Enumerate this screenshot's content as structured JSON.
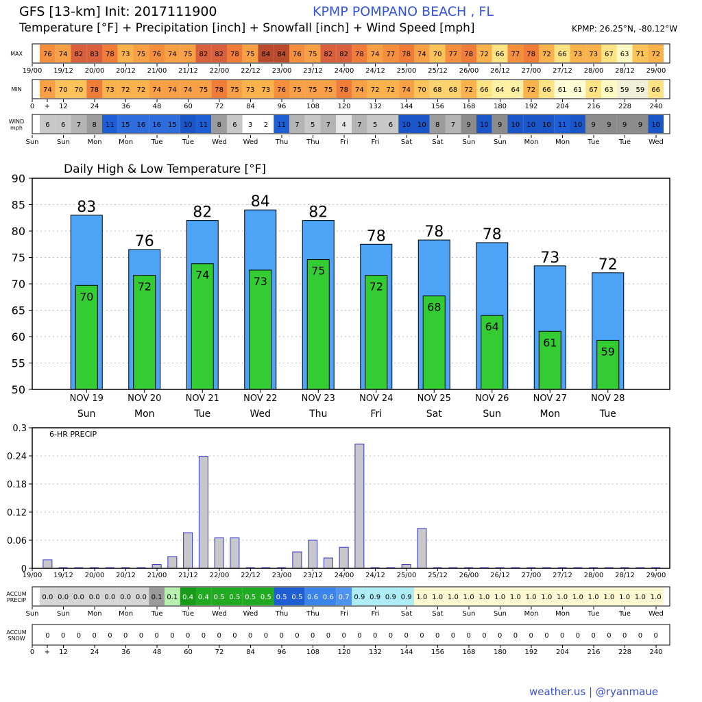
{
  "header": {
    "title_line1": "GFS [13-km] Init: 2017111900",
    "title_line2": "Temperature [°F] + Precipitation [inch] + Snowfall [inch] + Wind Speed [mph]",
    "station": "KPMP POMPANO BEACH  , FL",
    "coords": "KPMP: 26.25°N, -80.12°W"
  },
  "footer": {
    "credit": "weather.us | @ryanmaue"
  },
  "strips": {
    "max_label": "MAX",
    "min_label": "MIN",
    "wind_label": [
      "WIND",
      "mph"
    ],
    "accum_precip_label": [
      "ACCUM",
      "PRECIP"
    ],
    "accum_snow_label": [
      "ACCUM",
      "SNOW"
    ],
    "max": [
      76,
      74,
      82,
      83,
      78,
      73,
      75,
      76,
      74,
      75,
      82,
      82,
      78,
      75,
      84,
      84,
      76,
      75,
      82,
      82,
      78,
      74,
      77,
      78,
      74,
      70,
      77,
      78,
      72,
      66,
      77,
      78,
      72,
      66,
      73,
      73,
      67,
      63,
      71,
      72
    ],
    "min": [
      74,
      70,
      70,
      78,
      73,
      72,
      72,
      74,
      74,
      74,
      75,
      78,
      75,
      73,
      73,
      76,
      75,
      75,
      75,
      78,
      74,
      72,
      72,
      74,
      70,
      68,
      68,
      72,
      66,
      64,
      64,
      72,
      66,
      61,
      61,
      67,
      63,
      59,
      59,
      66
    ],
    "wind": [
      6,
      6,
      7,
      8,
      11,
      15,
      16,
      16,
      15,
      10,
      11,
      8,
      6,
      3,
      2,
      11,
      7,
      5,
      7,
      4,
      7,
      5,
      6,
      10,
      10,
      8,
      7,
      9,
      10,
      9,
      10,
      10,
      10,
      11,
      10,
      9,
      9,
      9,
      9,
      10
    ],
    "accum_precip": [
      "0.0",
      "0.0",
      "0.0",
      "0.0",
      "0.0",
      "0.0",
      "0.0",
      "0.1",
      "0.1",
      "0.4",
      "0.4",
      "0.5",
      "0.5",
      "0.5",
      "0.5",
      "0.5",
      "0.5",
      "0.6",
      "0.6",
      "0.7",
      "0.9",
      "0.9",
      "0.9",
      "0.9",
      "1.0",
      "1.0",
      "1.0",
      "1.0",
      "1.0",
      "1.0",
      "1.0",
      "1.0",
      "1.0",
      "1.0",
      "1.0",
      "1.0",
      "1.0",
      "1.0",
      "1.0",
      "1.0"
    ],
    "accum_snow": [
      0,
      0,
      0,
      0,
      0,
      0,
      0,
      0,
      0,
      0,
      0,
      0,
      0,
      0,
      0,
      0,
      0,
      0,
      0,
      0,
      0,
      0,
      0,
      0,
      0,
      0,
      0,
      0,
      0,
      0,
      0,
      0,
      0,
      0,
      0,
      0,
      0,
      0,
      0,
      0
    ],
    "date_ticks": [
      "19/00",
      "19/12",
      "20/00",
      "20/12",
      "21/00",
      "21/12",
      "22/00",
      "22/12",
      "23/00",
      "23/12",
      "24/00",
      "24/12",
      "25/00",
      "25/12",
      "26/00",
      "26/12",
      "27/00",
      "27/12",
      "28/00",
      "28/12",
      "29/00"
    ],
    "hour_ticks": [
      "0",
      "+",
      "12",
      "24",
      "36",
      "48",
      "60",
      "72",
      "84",
      "96",
      "108",
      "120",
      "132",
      "144",
      "156",
      "168",
      "180",
      "192",
      "204",
      "216",
      "228",
      "240"
    ],
    "day_ticks": [
      "Sun",
      "Sun",
      "Mon",
      "Mon",
      "Tue",
      "Tue",
      "Wed",
      "Wed",
      "Thu",
      "Thu",
      "Fri",
      "Fri",
      "Sat",
      "Sat",
      "Sun",
      "Sun",
      "Mon",
      "Mon",
      "Tue",
      "Tue",
      "Wed"
    ]
  },
  "chart_data": [
    {
      "type": "bar",
      "title": "Daily High & Low Temperature [°F]",
      "categories": [
        "NOV 19",
        "NOV 20",
        "NOV 21",
        "NOV 22",
        "NOV 23",
        "NOV 24",
        "NOV 25",
        "NOV 26",
        "NOV 27",
        "NOV 28"
      ],
      "weekdays": [
        "Sun",
        "Mon",
        "Tue",
        "Wed",
        "Thu",
        "Fri",
        "Sat",
        "Sun",
        "Mon",
        "Tue"
      ],
      "series": [
        {
          "name": "High",
          "color": "#4da3f5",
          "values": [
            83,
            76.5,
            82,
            84,
            82,
            77.5,
            78.3,
            77.8,
            73.4,
            72.1
          ],
          "labels": [
            "83",
            "76",
            "82",
            "84",
            "82",
            "78",
            "78",
            "78",
            "73",
            "72"
          ]
        },
        {
          "name": "Low",
          "color": "#33cc33",
          "values": [
            69.7,
            71.6,
            73.8,
            72.6,
            74.6,
            71.6,
            67.7,
            64.0,
            61.0,
            59.3
          ],
          "labels": [
            "70",
            "72",
            "74",
            "73",
            "75",
            "72",
            "68",
            "64",
            "61",
            "59"
          ]
        }
      ],
      "ylim": [
        50,
        90
      ],
      "yticks": [
        "50",
        "55",
        "60",
        "65",
        "70",
        "75",
        "80",
        "85",
        "90"
      ],
      "grid": true
    },
    {
      "type": "bar",
      "title": "6-HR PRECIP",
      "x": [
        "19/00",
        "19/06",
        "19/12",
        "19/18",
        "20/00",
        "20/06",
        "20/12",
        "20/18",
        "21/00",
        "21/06",
        "21/12",
        "21/18",
        "22/00",
        "22/06",
        "22/12",
        "22/18",
        "23/00",
        "23/06",
        "23/12",
        "23/18",
        "24/00",
        "24/06",
        "24/12",
        "24/18",
        "25/00",
        "25/06",
        "25/12",
        "25/18",
        "26/00",
        "26/06",
        "26/12",
        "26/18",
        "27/00",
        "27/06",
        "27/12",
        "27/18",
        "28/00",
        "28/06",
        "28/12",
        "28/18"
      ],
      "values": [
        0.018,
        0,
        0,
        0,
        0,
        0,
        0,
        0.008,
        0.025,
        0.076,
        0.239,
        0.065,
        0.065,
        0,
        0,
        0,
        0.035,
        0.06,
        0.022,
        0.045,
        0.265,
        0,
        0,
        0.008,
        0.085,
        0,
        0,
        0,
        0,
        0,
        0,
        0,
        0,
        0,
        0,
        0,
        0,
        0,
        0,
        0
      ],
      "color": "#c8c8cc",
      "ylim": [
        0,
        0.3
      ],
      "yticks": [
        "0",
        "0.06",
        "0.12",
        "0.18",
        "0.24",
        "0.3"
      ],
      "grid": true
    }
  ]
}
